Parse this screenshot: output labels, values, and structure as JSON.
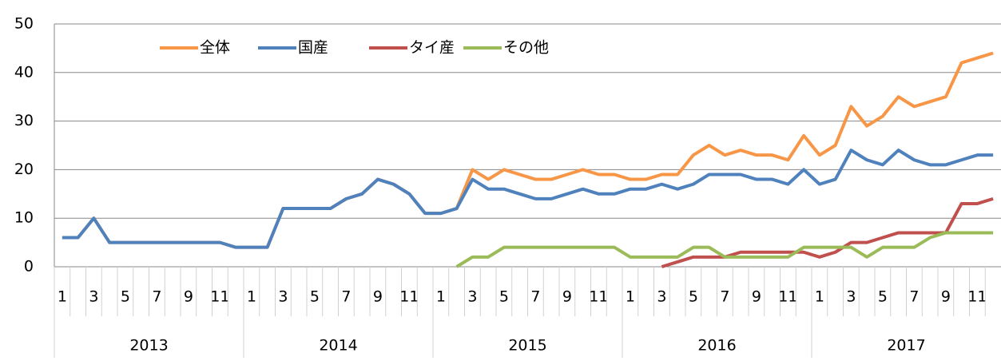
{
  "chart_data": {
    "type": "line",
    "categories": [
      "1",
      null,
      "3",
      null,
      "5",
      null,
      "7",
      null,
      "9",
      null,
      "11",
      null,
      "1",
      null,
      "3",
      null,
      "5",
      null,
      "7",
      null,
      "9",
      null,
      "11",
      null,
      "1",
      null,
      "3",
      null,
      "5",
      null,
      "7",
      null,
      "9",
      null,
      "11",
      null,
      "1",
      null,
      "3",
      null,
      "5",
      null,
      "7",
      null,
      "9",
      null,
      "11",
      null,
      "1",
      null,
      "3",
      null,
      "5",
      null,
      "7",
      null,
      "9",
      null,
      "11",
      null
    ],
    "years": [
      "2013",
      "2014",
      "2015",
      "2016",
      "2017"
    ],
    "series": [
      {
        "name": "全体",
        "color": "#f79646",
        "values": [
          6,
          6,
          10,
          5,
          5,
          5,
          5,
          5,
          5,
          5,
          5,
          4,
          4,
          4,
          12,
          12,
          12,
          12,
          14,
          15,
          18,
          17,
          15,
          11,
          11,
          12,
          20,
          18,
          20,
          19,
          18,
          18,
          19,
          20,
          19,
          19,
          18,
          18,
          19,
          19,
          23,
          25,
          23,
          24,
          23,
          23,
          22,
          27,
          23,
          25,
          33,
          29,
          31,
          35,
          33,
          34,
          35,
          42,
          43,
          44
        ]
      },
      {
        "name": "国産",
        "color": "#4f81bd",
        "values": [
          6,
          6,
          10,
          5,
          5,
          5,
          5,
          5,
          5,
          5,
          5,
          4,
          4,
          4,
          12,
          12,
          12,
          12,
          14,
          15,
          18,
          17,
          15,
          11,
          11,
          12,
          18,
          16,
          16,
          15,
          14,
          14,
          15,
          16,
          15,
          15,
          16,
          16,
          17,
          16,
          17,
          19,
          19,
          19,
          18,
          18,
          17,
          20,
          17,
          18,
          24,
          22,
          21,
          24,
          22,
          21,
          21,
          22,
          23,
          23
        ]
      },
      {
        "name": "タイ産",
        "color": "#c0504d",
        "values": [
          null,
          null,
          null,
          null,
          null,
          null,
          null,
          null,
          null,
          null,
          null,
          null,
          null,
          null,
          null,
          null,
          null,
          null,
          null,
          null,
          null,
          null,
          null,
          null,
          null,
          null,
          null,
          null,
          null,
          null,
          null,
          null,
          null,
          null,
          null,
          null,
          null,
          null,
          0,
          1,
          2,
          2,
          2,
          3,
          3,
          3,
          3,
          3,
          2,
          3,
          5,
          5,
          6,
          7,
          7,
          7,
          7,
          13,
          13,
          14
        ]
      },
      {
        "name": "その他",
        "color": "#9bbb59",
        "values": [
          null,
          null,
          null,
          null,
          null,
          null,
          null,
          null,
          null,
          null,
          null,
          null,
          null,
          null,
          null,
          null,
          null,
          null,
          null,
          null,
          null,
          null,
          null,
          null,
          null,
          0,
          2,
          2,
          4,
          4,
          4,
          4,
          4,
          4,
          4,
          4,
          2,
          2,
          2,
          2,
          4,
          4,
          2,
          2,
          2,
          2,
          2,
          4,
          4,
          4,
          4,
          2,
          4,
          4,
          4,
          6,
          7,
          7,
          7,
          7
        ]
      }
    ],
    "ylim": [
      0,
      50
    ],
    "yticks": [
      0,
      10,
      20,
      30,
      40,
      50
    ],
    "grid": true,
    "legend": "top"
  }
}
